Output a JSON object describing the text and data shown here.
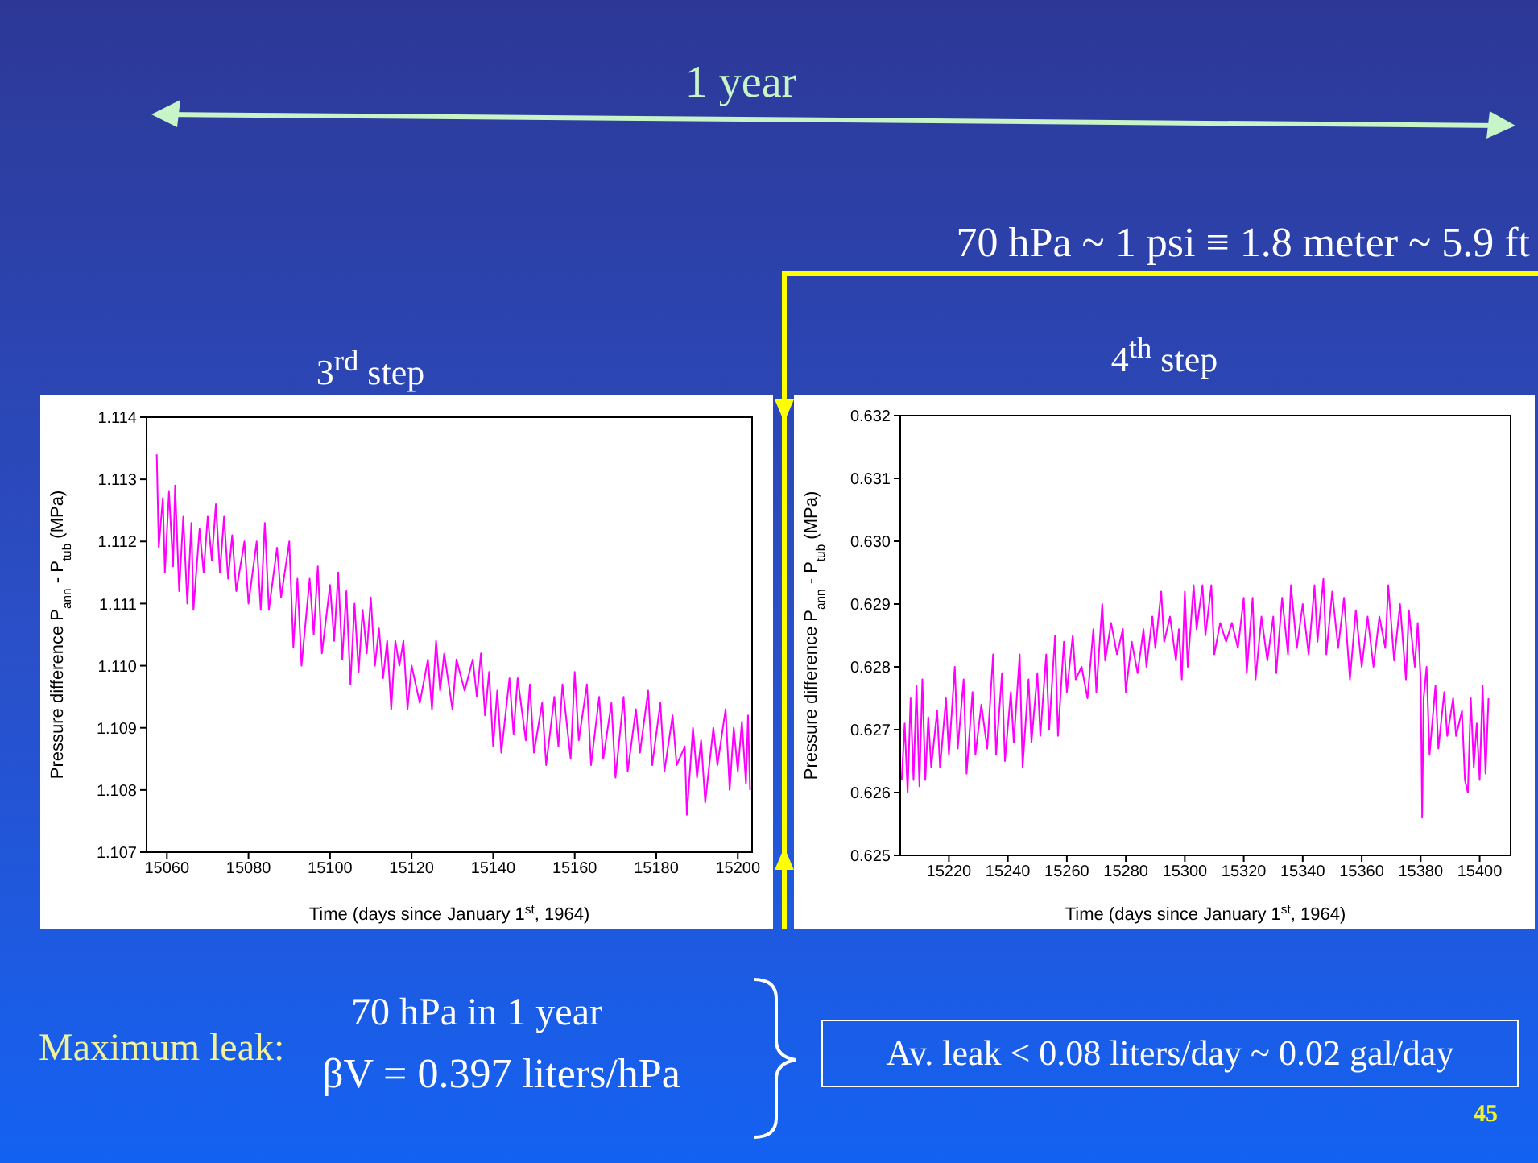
{
  "chart_data": [
    {
      "type": "line",
      "title": "3$^{rd}$ step",
      "xlabel": "Time (days since January 1$^{st}$, 1964)",
      "ylabel": "Pressure difference P$_{ann}$ - P$_{tub}$ (MPa)",
      "xlim": [
        15055,
        15203.5
      ],
      "xticks": [
        15060,
        15080,
        15100,
        15120,
        15140,
        15160,
        15180,
        15200
      ],
      "ylim": [
        1.107,
        1.114
      ],
      "yticks": [
        {
          "value": 1.107,
          "label": "1.107"
        },
        {
          "value": 1.108,
          "label": "1.108"
        },
        {
          "value": 1.109,
          "label": "1.109"
        },
        {
          "value": 1.11,
          "label": "1.110"
        },
        {
          "value": 1.111,
          "label": "1.111"
        },
        {
          "value": 1.112,
          "label": "1.112"
        },
        {
          "value": 1.113,
          "label": "1.113"
        },
        {
          "value": 1.114,
          "label": "1.114"
        }
      ],
      "annotations": [
        "1 year",
        "70 hPa ~ 1 psi ≡ 1.8 meter ~ 5.9 ft",
        "Maximum leak:",
        "70 hPa in 1 year",
        "βV = 0.397 liters/hPa",
        "Av. leak < 0.08 liters/day ~ 0.02 gal/day",
        "45"
      ],
      "series": [
        {
          "color": "#ff00ff",
          "x": [
            15057.5,
            15058,
            15059,
            15059.5,
            15060.5,
            15061.5,
            15062,
            15063,
            15064,
            15065,
            15066,
            15066.5,
            15068,
            15069,
            15070,
            15071,
            15072,
            15073,
            15074,
            15075,
            15076,
            15077,
            15079,
            15080,
            15082,
            15083,
            15084,
            15085,
            15087,
            15088,
            15090,
            15091,
            15092,
            15093,
            15095,
            15096,
            15097,
            15098,
            15100,
            15101,
            15102,
            15103,
            15104,
            15105,
            15106,
            15107,
            15108,
            15109,
            15110,
            15111,
            15112,
            15113,
            15114,
            15115,
            15116,
            15117,
            15118,
            15119,
            15120,
            15122,
            15124,
            15125,
            15126,
            15127,
            15128,
            15130,
            15131,
            15133,
            15135,
            15136,
            15137,
            15138,
            15139,
            15140,
            15141,
            15142,
            15144,
            15145,
            15146,
            15148,
            15149,
            15150,
            15152,
            15153,
            15155,
            15156,
            15157,
            15159,
            15160,
            15161,
            15163,
            15164,
            15166,
            15167,
            15169,
            15170,
            15172,
            15173,
            15175,
            15176,
            15178,
            15179,
            15181,
            15182,
            15184,
            15185,
            15187,
            15187.5,
            15189,
            15190,
            15191,
            15192,
            15194,
            15195,
            15197,
            15198,
            15199,
            15200,
            15201,
            15202,
            15202.5,
            15203
          ],
          "values": [
            1.1134,
            1.1119,
            1.1127,
            1.1115,
            1.1128,
            1.1116,
            1.1129,
            1.1112,
            1.1124,
            1.111,
            1.1123,
            1.1109,
            1.1122,
            1.1115,
            1.1124,
            1.1117,
            1.1126,
            1.1115,
            1.1124,
            1.1114,
            1.1121,
            1.1112,
            1.112,
            1.111,
            1.112,
            1.1109,
            1.1123,
            1.1109,
            1.1119,
            1.1111,
            1.112,
            1.1103,
            1.1114,
            1.11,
            1.1114,
            1.1105,
            1.1116,
            1.1102,
            1.1113,
            1.1104,
            1.1115,
            1.1101,
            1.1112,
            1.1097,
            1.111,
            1.1099,
            1.1109,
            1.1102,
            1.1111,
            1.11,
            1.1106,
            1.1098,
            1.1104,
            1.1093,
            1.1104,
            1.11,
            1.1104,
            1.1093,
            1.11,
            1.1094,
            1.1101,
            1.1093,
            1.1104,
            1.1096,
            1.1102,
            1.1093,
            1.1101,
            1.1096,
            1.1101,
            1.1095,
            1.1102,
            1.1092,
            1.1099,
            1.1087,
            1.1096,
            1.1086,
            1.1098,
            1.1089,
            1.1098,
            1.1088,
            1.1097,
            1.1086,
            1.1094,
            1.1084,
            1.1095,
            1.1087,
            1.1097,
            1.1085,
            1.1099,
            1.1088,
            1.1097,
            1.1084,
            1.1095,
            1.1085,
            1.1094,
            1.1082,
            1.1095,
            1.1083,
            1.1093,
            1.1086,
            1.1096,
            1.1084,
            1.1094,
            1.1083,
            1.1092,
            1.1084,
            1.1087,
            1.1076,
            1.109,
            1.1082,
            1.1088,
            1.1078,
            1.109,
            1.1084,
            1.1093,
            1.108,
            1.109,
            1.1083,
            1.1091,
            1.1081,
            1.1092,
            1.108
          ]
        }
      ]
    },
    {
      "type": "line",
      "title": "4$^{th}$ step",
      "xlabel": "Time (days since January 1$^{st}$, 1964)",
      "ylabel": "Pressure difference P$_{ann}$ - P$_{tub}$ (MPa)",
      "xlim": [
        15203.5,
        15410.5
      ],
      "xticks": [
        15220,
        15240,
        15260,
        15280,
        15300,
        15320,
        15340,
        15360,
        15380,
        15400
      ],
      "ylim": [
        0.625,
        0.632
      ],
      "yticks": [
        {
          "value": 0.625,
          "label": "0.625"
        },
        {
          "value": 0.626,
          "label": "0.626"
        },
        {
          "value": 0.627,
          "label": "0.627"
        },
        {
          "value": 0.628,
          "label": "0.628"
        },
        {
          "value": 0.629,
          "label": "0.629"
        },
        {
          "value": 0.63,
          "label": "0.630"
        },
        {
          "value": 0.631,
          "label": "0.631"
        },
        {
          "value": 0.632,
          "label": "0.632"
        }
      ],
      "series": [
        {
          "color": "#ff00ff",
          "x": [
            15204,
            15205,
            15206,
            15207,
            15208,
            15209,
            15210,
            15211,
            15212,
            15213,
            15214,
            15216,
            15217,
            15219,
            15220,
            15222,
            15223,
            15225,
            15226,
            15228,
            15229,
            15231,
            15233,
            15235,
            15236,
            15238,
            15239,
            15241,
            15242,
            15244,
            15245,
            15247,
            15248,
            15250,
            15251,
            15253,
            15254,
            15256,
            15257,
            15259,
            15260,
            15262,
            15263,
            15265,
            15267,
            15269,
            15270,
            15272,
            15273,
            15275,
            15277,
            15279,
            15280,
            15282,
            15284,
            15286,
            15287,
            15289,
            15290,
            15292,
            15293,
            15295,
            15297,
            15298,
            15299,
            15300,
            15301,
            15303,
            15304,
            15306,
            15307,
            15309,
            15310,
            15312,
            15314,
            15316,
            15318,
            15320,
            15321,
            15323,
            15324,
            15326,
            15328,
            15330,
            15331,
            15333,
            15335,
            15336,
            15338,
            15340,
            15342,
            15344,
            15345,
            15347,
            15348,
            15350,
            15352,
            15354,
            15356,
            15358,
            15360,
            15362,
            15364,
            15366,
            15368,
            15369,
            15371,
            15373,
            15375,
            15376,
            15378,
            15379,
            15380,
            15380.5,
            15381,
            15382,
            15383,
            15385,
            15386,
            15388,
            15389,
            15391,
            15392,
            15394,
            15395,
            15396,
            15397,
            15398,
            15399,
            15400,
            15401,
            15402,
            15403
          ],
          "values": [
            0.6262,
            0.6271,
            0.626,
            0.6275,
            0.6262,
            0.6277,
            0.6261,
            0.6278,
            0.6262,
            0.6272,
            0.6264,
            0.6273,
            0.6264,
            0.6275,
            0.6266,
            0.628,
            0.6267,
            0.6278,
            0.6263,
            0.6276,
            0.6266,
            0.6274,
            0.6267,
            0.6282,
            0.6266,
            0.6279,
            0.6265,
            0.6276,
            0.6268,
            0.6282,
            0.6264,
            0.6278,
            0.6268,
            0.6279,
            0.6269,
            0.6282,
            0.627,
            0.6285,
            0.6269,
            0.6284,
            0.6276,
            0.6285,
            0.6278,
            0.628,
            0.6275,
            0.6286,
            0.6276,
            0.629,
            0.6281,
            0.6287,
            0.6282,
            0.6286,
            0.6276,
            0.6284,
            0.6279,
            0.6286,
            0.628,
            0.6288,
            0.6283,
            0.6292,
            0.6284,
            0.6288,
            0.6281,
            0.6286,
            0.6278,
            0.6292,
            0.628,
            0.6293,
            0.6286,
            0.6293,
            0.6285,
            0.6293,
            0.6282,
            0.6287,
            0.6284,
            0.6287,
            0.6283,
            0.6291,
            0.6279,
            0.6291,
            0.6278,
            0.6288,
            0.6281,
            0.6288,
            0.6279,
            0.6291,
            0.6282,
            0.6293,
            0.6283,
            0.629,
            0.6282,
            0.6293,
            0.6284,
            0.6294,
            0.6282,
            0.6292,
            0.6283,
            0.6291,
            0.6278,
            0.6289,
            0.628,
            0.6288,
            0.628,
            0.6288,
            0.6283,
            0.6293,
            0.6281,
            0.629,
            0.6278,
            0.6289,
            0.628,
            0.6287,
            0.6278,
            0.6256,
            0.6275,
            0.628,
            0.6266,
            0.6277,
            0.6267,
            0.6276,
            0.6269,
            0.6275,
            0.6269,
            0.6273,
            0.6262,
            0.626,
            0.6275,
            0.6264,
            0.6271,
            0.6262,
            0.6277,
            0.6263,
            0.6275
          ]
        }
      ]
    }
  ]
}
